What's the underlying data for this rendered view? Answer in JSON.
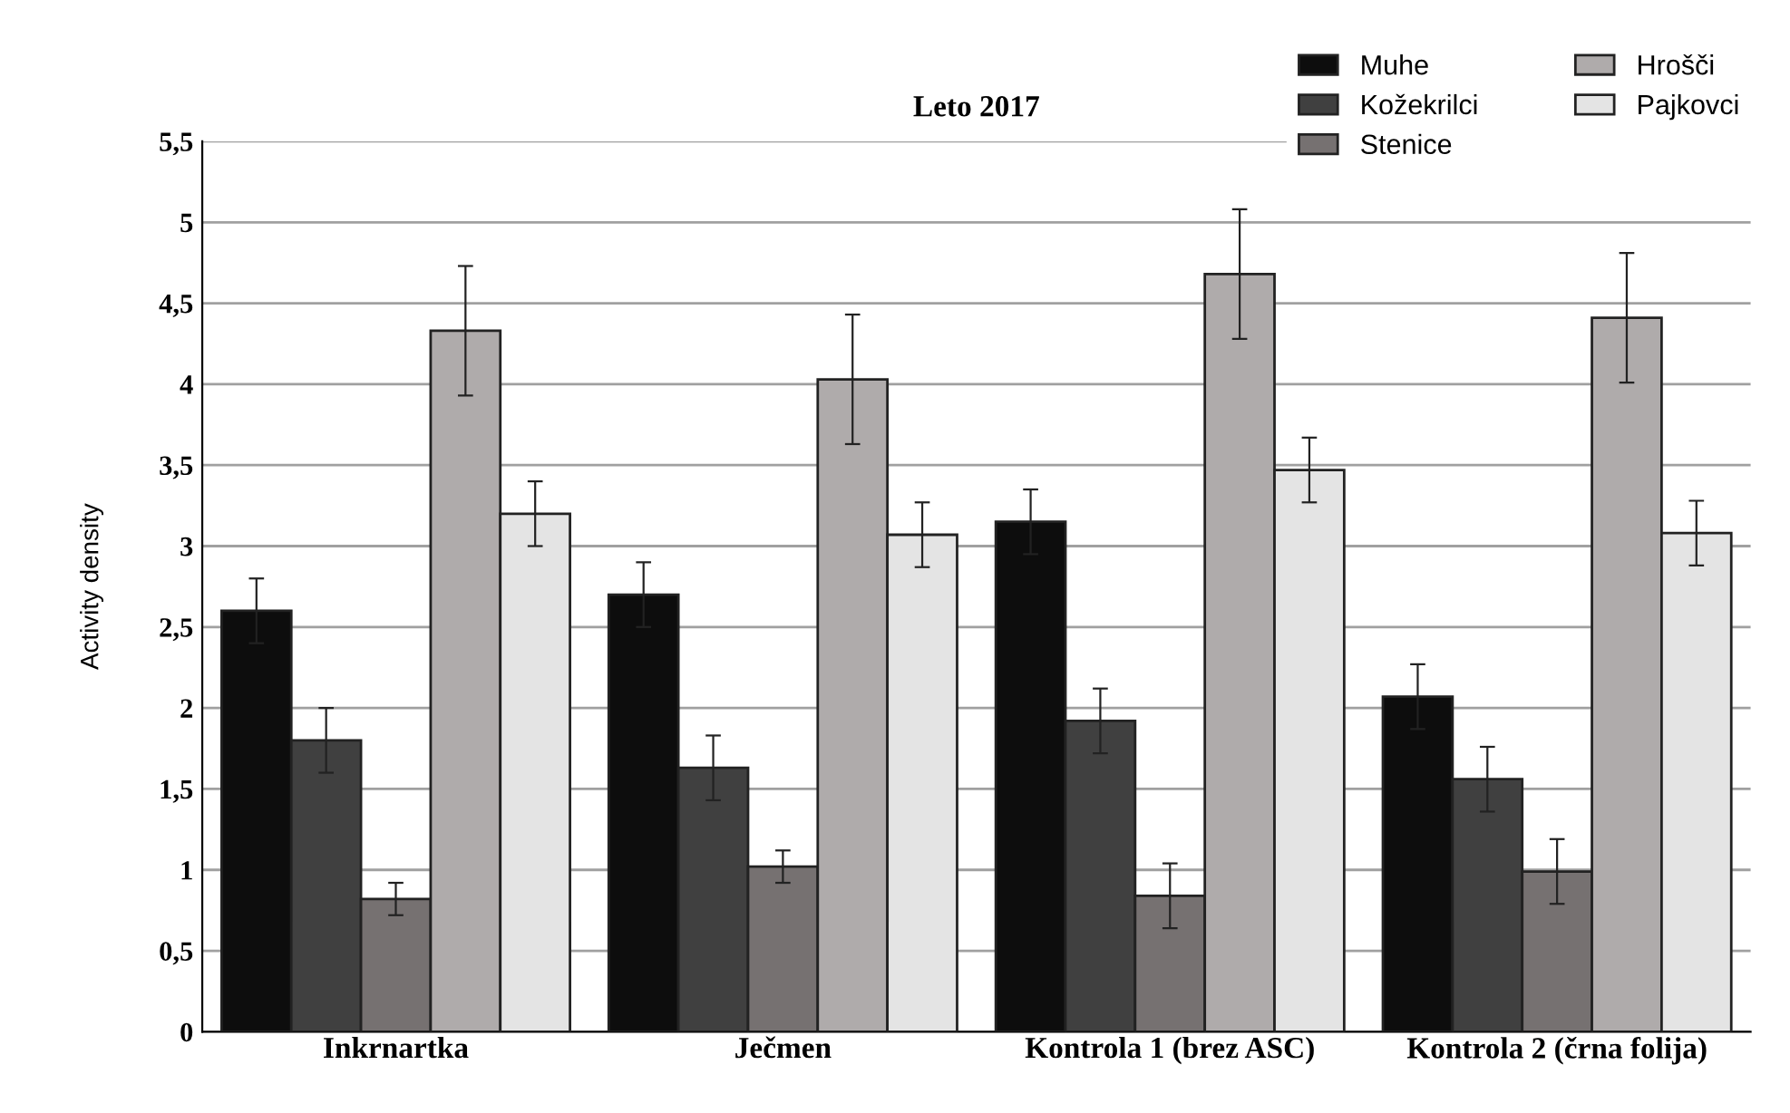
{
  "chart_data": {
    "type": "bar",
    "title": "Leto 2017",
    "ylabel": "Activity density",
    "categories": [
      "Inkrnartka",
      "Ječmen",
      "Kontrola 1 (brez ASC)",
      "Kontrola 2 (črna folija)"
    ],
    "series": [
      {
        "name": "Muhe",
        "color": "#0d0d0d",
        "values": [
          2.6,
          2.7,
          3.15,
          2.07
        ],
        "errors": [
          0.2,
          0.2,
          0.2,
          0.2
        ]
      },
      {
        "name": "Kožekrilci",
        "color": "#404040",
        "values": [
          1.8,
          1.63,
          1.92,
          1.56
        ],
        "errors": [
          0.2,
          0.2,
          0.2,
          0.2
        ]
      },
      {
        "name": "Stenice",
        "color": "#767171",
        "values": [
          0.82,
          1.02,
          0.84,
          0.99
        ],
        "errors": [
          0.1,
          0.1,
          0.2,
          0.2
        ]
      },
      {
        "name": "Hrošči",
        "color": "#afabab",
        "values": [
          4.33,
          4.03,
          4.68,
          4.41
        ],
        "errors": [
          0.4,
          0.4,
          0.4,
          0.4
        ]
      },
      {
        "name": "Pajkovci",
        "color": "#e4e4e4",
        "values": [
          3.2,
          3.07,
          3.47,
          3.08
        ],
        "errors": [
          0.2,
          0.2,
          0.2,
          0.2
        ]
      }
    ],
    "ylim": [
      0,
      5.5
    ],
    "yticks": [
      0,
      {
        "value": 0.5,
        "label": "0,5"
      },
      1,
      {
        "value": 1.5,
        "label": "1,5"
      },
      2,
      {
        "value": 2.5,
        "label": "2,5"
      },
      3,
      {
        "value": 3.5,
        "label": "3,5"
      },
      4,
      {
        "value": 4.5,
        "label": "4,5"
      },
      5,
      {
        "value": 5.5,
        "label": "5,5"
      }
    ],
    "grid": "y",
    "legend": "top right"
  }
}
